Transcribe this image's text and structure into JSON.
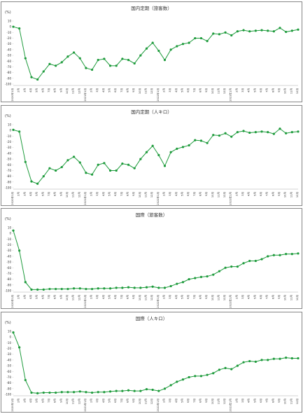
{
  "chart_data": [
    {
      "type": "line",
      "title": "国内定期（旅客数）",
      "y_label": "(%)",
      "categories": [
        "2020年1月",
        "2月",
        "3月",
        "4月",
        "5月",
        "6月",
        "7月",
        "8月",
        "9月",
        "10月",
        "11月",
        "12月",
        "2021年1月",
        "2月",
        "3月",
        "4月",
        "5月",
        "6月",
        "7月",
        "8月",
        "9月",
        "10月",
        "11月",
        "12月",
        "2022年1月",
        "2月",
        "3月",
        "4月",
        "5月",
        "6月",
        "7月",
        "8月",
        "9月",
        "10月",
        "11月",
        "12月",
        "2023年1月",
        "2月",
        "3月",
        "4月",
        "5月",
        "6月",
        "7月",
        "8月",
        "9月",
        "10月",
        "11月",
        "12月"
      ],
      "series": [
        {
          "name": "国内定期（旅客数）",
          "color": "#1e9b3c",
          "values": [
            0,
            -3,
            -55,
            -88,
            -92,
            -78,
            -65,
            -68,
            -62,
            -52,
            -45,
            -55,
            -72,
            -75,
            -58,
            -56,
            -68,
            -68,
            -56,
            -58,
            -64,
            -50,
            -38,
            -28,
            -42,
            -58,
            -40,
            -34,
            -30,
            -28,
            -20,
            -20,
            -25,
            -12,
            -13,
            -10,
            -15,
            -8,
            -6,
            -8,
            -7,
            -6,
            -7,
            -8,
            -2,
            -9,
            -7,
            -5
          ]
        }
      ],
      "ylim": [
        -100,
        10
      ],
      "yticks": [
        10,
        0,
        -10,
        -20,
        -30,
        -40,
        -50,
        -60,
        -70,
        -80,
        -90,
        -100
      ]
    },
    {
      "type": "line",
      "title": "国内定期（人キロ）",
      "y_label": "(%)",
      "categories": [
        "2020年1月",
        "2月",
        "3月",
        "4月",
        "5月",
        "6月",
        "7月",
        "8月",
        "9月",
        "10月",
        "11月",
        "12月",
        "2021年1月",
        "2月",
        "3月",
        "4月",
        "5月",
        "6月",
        "7月",
        "8月",
        "9月",
        "10月",
        "11月",
        "12月",
        "2022年1月",
        "2月",
        "3月",
        "4月",
        "5月",
        "6月",
        "7月",
        "8月",
        "9月",
        "10月",
        "11月",
        "12月",
        "2023年1月",
        "2月",
        "3月",
        "4月",
        "5月",
        "6月",
        "7月",
        "8月",
        "9月",
        "10月",
        "11月",
        "12月"
      ],
      "series": [
        {
          "name": "国内定期（人キロ）",
          "color": "#1e9b3c",
          "values": [
            1,
            -2,
            -55,
            -89,
            -93,
            -80,
            -66,
            -70,
            -64,
            -52,
            -46,
            -56,
            -74,
            -77,
            -60,
            -57,
            -70,
            -70,
            -58,
            -60,
            -66,
            -50,
            -38,
            -27,
            -43,
            -62,
            -38,
            -32,
            -29,
            -26,
            -17,
            -18,
            -22,
            -8,
            -9,
            -5,
            -11,
            -3,
            -1,
            -4,
            -3,
            -2,
            -3,
            -6,
            3,
            -5,
            -3,
            -2
          ]
        }
      ],
      "ylim": [
        -100,
        10
      ],
      "yticks": [
        10,
        0,
        -10,
        -20,
        -30,
        -40,
        -50,
        -60,
        -70,
        -80,
        -90,
        -100
      ]
    },
    {
      "type": "line",
      "title": "国際（旅客数）",
      "y_label": "(%)",
      "categories": [
        "2020年1月",
        "2月",
        "3月",
        "4月",
        "5月",
        "6月",
        "7月",
        "8月",
        "9月",
        "10月",
        "11月",
        "12月",
        "2021年1月",
        "2月",
        "3月",
        "4月",
        "5月",
        "6月",
        "7月",
        "8月",
        "9月",
        "10月",
        "11月",
        "12月",
        "2022年1月",
        "2月",
        "3月",
        "4月",
        "5月",
        "6月",
        "7月",
        "8月",
        "9月",
        "10月",
        "11月",
        "12月",
        "2023年1月",
        "2月",
        "3月",
        "4月",
        "5月",
        "6月",
        "7月",
        "8月",
        "9月",
        "10月",
        "11月",
        "12月"
      ],
      "series": [
        {
          "name": "国際（旅客数）",
          "color": "#1e9b3c",
          "values": [
            5,
            -30,
            -85,
            -98,
            -98,
            -98,
            -97,
            -97,
            -97,
            -97,
            -96,
            -96,
            -97,
            -97,
            -96,
            -96,
            -96,
            -95,
            -95,
            -94,
            -95,
            -95,
            -94,
            -93,
            -95,
            -95,
            -92,
            -88,
            -85,
            -80,
            -78,
            -76,
            -75,
            -72,
            -66,
            -60,
            -58,
            -58,
            -52,
            -48,
            -48,
            -45,
            -40,
            -38,
            -38,
            -36,
            -36,
            -35
          ]
        }
      ],
      "ylim": [
        -100,
        10
      ],
      "yticks": [
        10,
        0,
        -10,
        -20,
        -30,
        -40,
        -50,
        -60,
        -70,
        -80,
        -90,
        -100
      ]
    },
    {
      "type": "line",
      "title": "国際（人キロ）",
      "y_label": "(%)",
      "categories": [
        "2020年1月",
        "2月",
        "3月",
        "4月",
        "5月",
        "6月",
        "7月",
        "8月",
        "9月",
        "10月",
        "11月",
        "12月",
        "2021年1月",
        "2月",
        "3月",
        "4月",
        "5月",
        "6月",
        "7月",
        "8月",
        "9月",
        "10月",
        "11月",
        "12月",
        "2022年1月",
        "2月",
        "3月",
        "4月",
        "5月",
        "6月",
        "7月",
        "8月",
        "9月",
        "10月",
        "11月",
        "12月",
        "2023年1月",
        "2月",
        "3月",
        "4月",
        "5月",
        "6月",
        "7月",
        "8月",
        "9月",
        "10月",
        "11月",
        "12月"
      ],
      "series": [
        {
          "name": "国際（人キロ）",
          "color": "#1e9b3c",
          "values": [
            8,
            -18,
            -75,
            -97,
            -98,
            -97,
            -97,
            -97,
            -96,
            -96,
            -96,
            -95,
            -96,
            -97,
            -96,
            -96,
            -95,
            -94,
            -94,
            -93,
            -94,
            -94,
            -91,
            -92,
            -94,
            -90,
            -84,
            -78,
            -74,
            -70,
            -68,
            -68,
            -66,
            -63,
            -57,
            -54,
            -56,
            -50,
            -44,
            -42,
            -43,
            -40,
            -40,
            -38,
            -38,
            -36,
            -37,
            -37
          ]
        }
      ],
      "ylim": [
        -100,
        10
      ],
      "yticks": [
        10,
        0,
        -10,
        -20,
        -30,
        -40,
        -50,
        -60,
        -70,
        -80,
        -90,
        -100
      ]
    }
  ]
}
